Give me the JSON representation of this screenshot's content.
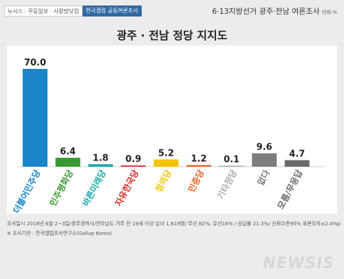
{
  "header": {
    "source_left": "뉴시스 · 무등일보 · 사랑방닷컴",
    "source_right": "한국갤럽 공동여론조사",
    "survey_title": "6·13지방선거 광주·전남 여론조사",
    "unit": "단위:%"
  },
  "colors": {
    "더불어민주당": "#1a85c8",
    "민주평화당": "#3a9a32",
    "바른미래당": "#1aa8a8",
    "자유한국당": "#d62d2a",
    "정의당": "#f2c400",
    "민중당": "#e8652a",
    "기타정당": "#aaaaaa",
    "없다": "#7d7d7d",
    "모름/무응답": "#6a6a6a"
  },
  "chart_data": {
    "type": "bar",
    "title": "광주 · 전남 정당 지지도",
    "xlabel": "",
    "ylabel": "",
    "ylim": [
      0,
      70
    ],
    "categories": [
      "더불어민주당",
      "민주평화당",
      "바른미래당",
      "자유한국당",
      "정의당",
      "민중당",
      "기타정당",
      "없다",
      "모름/무응답"
    ],
    "values": [
      70.0,
      6.4,
      1.8,
      0.9,
      5.2,
      1.2,
      0.1,
      9.6,
      4.7
    ],
    "value_labels": [
      "70.0",
      "6.4",
      "1.8",
      "0.9",
      "5.2",
      "1.2",
      "0.1",
      "9.6",
      "4.7"
    ],
    "grid": false,
    "legend": "none"
  },
  "footnotes": [
    "조사일시 2018년 6월 2~3일/광주광역시/전라남도 거주 만 19세 이상 남녀 1,619명/ 무선 82%, 유선18% / 응답률 21.3%/ 신뢰수준95% 표본오차±2.4%p",
    "※ 조사기관 : 한국갤럽조사연구소(Gallup Korea)"
  ],
  "watermark": "NEWSIS"
}
